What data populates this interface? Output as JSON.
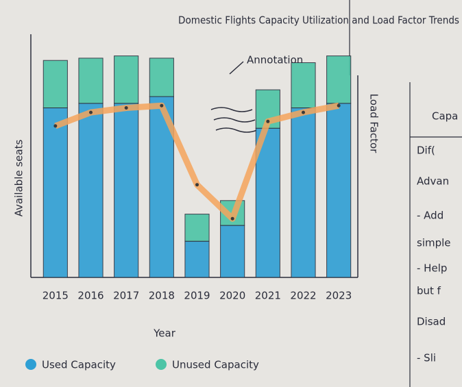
{
  "chart_data": {
    "type": "stacked-bar-line",
    "title": "Domestic Flights Capacity Utilization and Load Factor Trends",
    "x_label": "Year",
    "y_label": "Available seats",
    "y2_label": "Load Factor",
    "annotation": "Annotation",
    "categories": [
      "2015",
      "2016",
      "2017",
      "2018",
      "2019",
      "2020",
      "2021",
      "2022",
      "2023"
    ],
    "series": [
      {
        "name": "Used Capacity",
        "color": "#2e9fd4",
        "values": [
          75,
          77,
          77,
          80,
          16,
          23,
          66,
          75,
          77
        ]
      },
      {
        "name": "Unused Capacity",
        "color": "#4cc4a6",
        "values": [
          21,
          20,
          21,
          17,
          12,
          11,
          17,
          20,
          21
        ]
      },
      {
        "name": "Load Factor",
        "color": "#f4a45c",
        "axis": "y2",
        "values": [
          67,
          73,
          75,
          76,
          41,
          26,
          69,
          73,
          76
        ]
      }
    ],
    "ylim": [
      0,
      100
    ],
    "y2lim": [
      0,
      100
    ]
  },
  "notes": {
    "lines": [
      "Capa",
      "Dif(",
      "Advan",
      "- Add",
      "simple",
      "- Help",
      "but f",
      "Disad",
      "- Sli"
    ]
  }
}
